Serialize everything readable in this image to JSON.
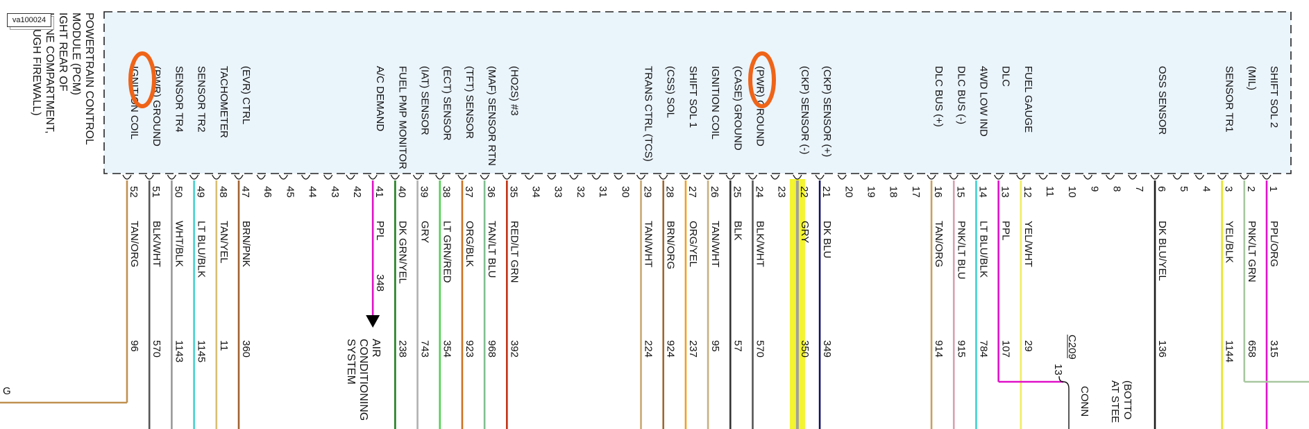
{
  "figure_id": "va100024",
  "module": {
    "title_lines": [
      "POWERTRAIN CONTROL",
      "MODULE (PCM)",
      "IGHT REAR OF",
      "IGINE COMPARTMENT,",
      "ROUGH FIREWALL)"
    ]
  },
  "pins": [
    {
      "pin": "1",
      "func": [
        "SHIFT SOL 2"
      ],
      "color": "PPL/ORG",
      "circuit": "315",
      "stroke": "#e010c8"
    },
    {
      "pin": "2",
      "func": [
        "(MIL)"
      ],
      "color": "PNK/LT GRN",
      "circuit": "658",
      "stroke": "#a8c7a0"
    },
    {
      "pin": "3",
      "func": [
        "SENSOR TR1"
      ],
      "color": "YEL/BLK",
      "circuit": "1144",
      "stroke": "#e8e420"
    },
    {
      "pin": "4",
      "func": [],
      "color": "",
      "circuit": "",
      "stroke": ""
    },
    {
      "pin": "5",
      "func": [],
      "color": "",
      "circuit": "",
      "stroke": ""
    },
    {
      "pin": "6",
      "func": [
        "OSS SENSOR"
      ],
      "color": "DK BLU/YEL",
      "circuit": "136",
      "stroke": "#1a1a1a"
    },
    {
      "pin": "7",
      "func": [],
      "color": "",
      "circuit": "",
      "stroke": ""
    },
    {
      "pin": "8",
      "func": [],
      "color": "",
      "circuit": "",
      "stroke": ""
    },
    {
      "pin": "9",
      "func": [],
      "color": "",
      "circuit": "",
      "stroke": ""
    },
    {
      "pin": "10",
      "func": [],
      "color": "",
      "circuit": "",
      "stroke": ""
    },
    {
      "pin": "11",
      "func": [],
      "color": "",
      "circuit": "",
      "stroke": ""
    },
    {
      "pin": "12",
      "func": [
        "FUEL GAUGE"
      ],
      "color": "YEL/WHT",
      "circuit": "29",
      "stroke": "#f0ee60"
    },
    {
      "pin": "13",
      "func": [
        "DLC"
      ],
      "color": "PPL",
      "circuit": "107",
      "stroke": "#e010c8"
    },
    {
      "pin": "14",
      "func": [
        "4WD LOW IND"
      ],
      "color": "LT BLU/BLK",
      "circuit": "784",
      "stroke": "#40d0d0"
    },
    {
      "pin": "15",
      "func": [
        "DLC BUS (-)"
      ],
      "color": "PNK/LT BLU",
      "circuit": "915",
      "stroke": "#d8a0b0"
    },
    {
      "pin": "16",
      "func": [
        "DLC BUS (+)"
      ],
      "color": "TAN/ORG",
      "circuit": "914",
      "stroke": "#c8a060"
    },
    {
      "pin": "17",
      "func": [],
      "color": "",
      "circuit": "",
      "stroke": ""
    },
    {
      "pin": "18",
      "func": [],
      "color": "",
      "circuit": "",
      "stroke": ""
    },
    {
      "pin": "19",
      "func": [],
      "color": "",
      "circuit": "",
      "stroke": ""
    },
    {
      "pin": "20",
      "func": [],
      "color": "",
      "circuit": "",
      "stroke": ""
    },
    {
      "pin": "21",
      "func": [
        "(CKP) SENSOR (+)"
      ],
      "color": "DK BLU",
      "circuit": "349",
      "stroke": "#10106a"
    },
    {
      "pin": "22",
      "func": [
        "(CKP) SENSOR (-)"
      ],
      "color": "GRY",
      "circuit": "350",
      "stroke": "#a0a0a0"
    },
    {
      "pin": "23",
      "func": [],
      "color": "",
      "circuit": "",
      "stroke": ""
    },
    {
      "pin": "24",
      "func": [
        "(PWR) GROUND"
      ],
      "color": "BLK/WHT",
      "circuit": "570",
      "stroke": "#555555"
    },
    {
      "pin": "25",
      "func": [
        "(CASE) GROUND"
      ],
      "color": "BLK",
      "circuit": "57",
      "stroke": "#333333"
    },
    {
      "pin": "26",
      "func": [
        "IGNITION COIL"
      ],
      "color": "TAN/WHT",
      "circuit": "95",
      "stroke": "#c8b080"
    },
    {
      "pin": "27",
      "func": [
        "SHIFT SOL 1"
      ],
      "color": "ORG/YEL",
      "circuit": "237",
      "stroke": "#f0a020"
    },
    {
      "pin": "28",
      "func": [
        "(CSS) SOL"
      ],
      "color": "BRN/ORG",
      "circuit": "924",
      "stroke": "#a06830"
    },
    {
      "pin": "29",
      "func": [
        "TRANS CTRL (TCS)"
      ],
      "color": "TAN/WHT",
      "circuit": "224",
      "stroke": "#c8a870"
    },
    {
      "pin": "30",
      "func": [],
      "color": "",
      "circuit": "",
      "stroke": ""
    },
    {
      "pin": "31",
      "func": [],
      "color": "",
      "circuit": "",
      "stroke": ""
    },
    {
      "pin": "32",
      "func": [],
      "color": "",
      "circuit": "",
      "stroke": ""
    },
    {
      "pin": "33",
      "func": [],
      "color": "",
      "circuit": "",
      "stroke": ""
    },
    {
      "pin": "34",
      "func": [],
      "color": "",
      "circuit": "",
      "stroke": ""
    },
    {
      "pin": "35",
      "func": [
        "(HO2S) #3"
      ],
      "color": "RED/LT GRN",
      "circuit": "392",
      "stroke": "#c03010"
    },
    {
      "pin": "36",
      "func": [
        "(MAF) SENSOR RTN"
      ],
      "color": "TAN/LT BLU",
      "circuit": "968",
      "stroke": "#80c090"
    },
    {
      "pin": "37",
      "func": [
        "(TFT) SENSOR"
      ],
      "color": "ORG/BLK",
      "circuit": "923",
      "stroke": "#d07020"
    },
    {
      "pin": "38",
      "func": [
        "(ECT) SENSOR"
      ],
      "color": "LT GRN/RED",
      "circuit": "354",
      "stroke": "#50d050"
    },
    {
      "pin": "39",
      "func": [
        "(IAT) SENSOR"
      ],
      "color": "GRY",
      "circuit": "743",
      "stroke": "#b0b0b0"
    },
    {
      "pin": "40",
      "func": [
        "FUEL PMP MONITOR"
      ],
      "color": "DK GRN/YEL",
      "circuit": "238",
      "stroke": "#208020"
    },
    {
      "pin": "41",
      "func": [
        "A/C DEMAND"
      ],
      "color": "PPL",
      "circuit": "348",
      "stroke": "#e010c8"
    },
    {
      "pin": "42",
      "func": [],
      "color": "",
      "circuit": "",
      "stroke": ""
    },
    {
      "pin": "43",
      "func": [],
      "color": "",
      "circuit": "",
      "stroke": ""
    },
    {
      "pin": "44",
      "func": [],
      "color": "",
      "circuit": "",
      "stroke": ""
    },
    {
      "pin": "45",
      "func": [],
      "color": "",
      "circuit": "",
      "stroke": ""
    },
    {
      "pin": "46",
      "func": [],
      "color": "",
      "circuit": "",
      "stroke": ""
    },
    {
      "pin": "47",
      "func": [
        "(EVR) CTRL"
      ],
      "color": "BRN/PNK",
      "circuit": "360",
      "stroke": "#a06030"
    },
    {
      "pin": "48",
      "func": [
        "TACHOMETER"
      ],
      "color": "TAN/YEL",
      "circuit": "11",
      "stroke": "#d8c070"
    },
    {
      "pin": "49",
      "func": [
        "SENSOR TR2"
      ],
      "color": "LT BLU/BLK",
      "circuit": "1145",
      "stroke": "#40d0d0"
    },
    {
      "pin": "50",
      "func": [
        "SENSOR TR4"
      ],
      "color": "WHT/BLK",
      "circuit": "1143",
      "stroke": "#999999"
    },
    {
      "pin": "51",
      "func": [
        "(PWR) GROUND"
      ],
      "color": "BLK/WHT",
      "circuit": "570",
      "stroke": "#555555"
    },
    {
      "pin": "52",
      "func": [
        "IGNITION COIL"
      ],
      "color": "TAN/ORG",
      "circuit": "96",
      "stroke": "#c09050"
    }
  ],
  "ac_label": [
    "AIR",
    "CONDITIONING",
    "SYSTEM"
  ],
  "connector_c209": {
    "name": "C209",
    "pin": "13",
    "text": [
      "CONN"
    ]
  },
  "bottom_note": [
    "(BOTTO",
    "AT STEE"
  ],
  "edge_letter": "G",
  "colors": {
    "box_fill": "#eaf4fb",
    "box_border": "#222222",
    "highlight": "#f4f430",
    "circle_marker": "#ef6418",
    "arrow": "#000000"
  }
}
